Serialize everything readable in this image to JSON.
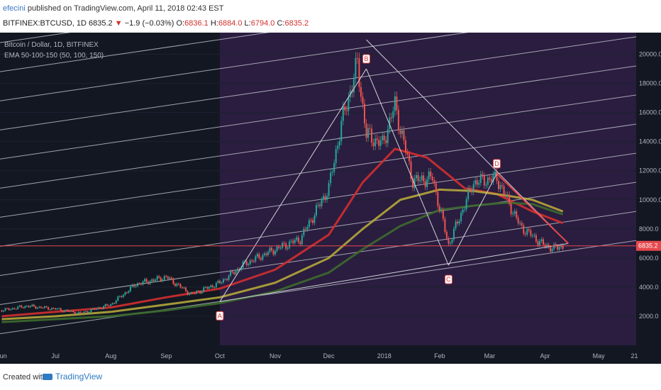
{
  "header": {
    "username": "efecini",
    "published_text": " published on TradingView.com, April 11, 2018 02:43 EST",
    "symbol": "BITFINEX:BTCUSD, 1D",
    "last_price": "6835.2",
    "change": "−1.9 (−0.03%)",
    "o_label": "O:",
    "o_value": "6836.1",
    "h_label": "H:",
    "h_value": "6884.0",
    "l_label": "L:",
    "l_value": "6794.0",
    "c_label": "C:",
    "c_value": "6835.2"
  },
  "legend": {
    "series_title": "Bitcoin / Dollar, 1D, BITFINEX",
    "indicator_title": "EMA 50-100-150 (50, 100, 150)"
  },
  "footer": {
    "created_with": "Created with",
    "brand": "TradingView"
  },
  "colors": {
    "background": "#131722",
    "highlight_zone": "#2a1d3f",
    "candle_up": "#26a69a",
    "candle_down": "#ef5350",
    "ema50": "#d32f2f",
    "ema100": "#b5a73a",
    "ema150": "#3d6b2e",
    "trendline": "#d0d3dc",
    "price_line": "#e5484d"
  },
  "chart_data": {
    "type": "line",
    "title": "Bitcoin / Dollar, 1D, BITFINEX",
    "x_ticks": [
      "Jun",
      "Jul",
      "Aug",
      "Sep",
      "Oct",
      "Nov",
      "Dec",
      "2018",
      "Feb",
      "Mar",
      "Apr",
      "May",
      "21"
    ],
    "y_ticks": [
      "2000.0",
      "4000.0",
      "6000.0",
      "8000.0",
      "10000.0",
      "12000.0",
      "14000.0",
      "16000.0",
      "18000.0",
      "20000.0"
    ],
    "ylim": [
      0,
      21000
    ],
    "last_price_label": "6835.2",
    "series": [
      {
        "name": "BTCUSD",
        "x": [
          "2017-06-01",
          "2017-06-15",
          "2017-07-01",
          "2017-07-15",
          "2017-08-01",
          "2017-08-15",
          "2017-09-01",
          "2017-09-15",
          "2017-10-01",
          "2017-10-15",
          "2017-11-01",
          "2017-11-15",
          "2017-12-01",
          "2017-12-08",
          "2017-12-17",
          "2017-12-22",
          "2017-12-31",
          "2018-01-07",
          "2018-01-17",
          "2018-01-28",
          "2018-02-06",
          "2018-02-20",
          "2018-03-05",
          "2018-03-18",
          "2018-03-31",
          "2018-04-06",
          "2018-04-11"
        ],
        "values": [
          2400,
          2700,
          2500,
          2200,
          2800,
          4200,
          4700,
          3500,
          4300,
          5600,
          6600,
          7300,
          10800,
          15200,
          19300,
          14500,
          13800,
          16500,
          11300,
          11500,
          6900,
          11200,
          11500,
          8200,
          6900,
          6650,
          6835
        ]
      },
      {
        "name": "EMA 50",
        "x": [
          "2017-06-01",
          "2017-07-01",
          "2017-08-01",
          "2017-09-01",
          "2017-10-01",
          "2017-11-01",
          "2017-12-01",
          "2017-12-20",
          "2018-01-07",
          "2018-01-25",
          "2018-02-15",
          "2018-03-05",
          "2018-03-25",
          "2018-04-11"
        ],
        "values": [
          2000,
          2300,
          2600,
          3300,
          3900,
          5200,
          7600,
          11200,
          13500,
          12900,
          10800,
          10400,
          9200,
          8400
        ]
      },
      {
        "name": "EMA 100",
        "x": [
          "2017-06-01",
          "2017-07-01",
          "2017-08-01",
          "2017-09-01",
          "2017-10-01",
          "2017-11-01",
          "2017-12-01",
          "2017-12-20",
          "2018-01-10",
          "2018-02-01",
          "2018-02-20",
          "2018-03-10",
          "2018-03-25",
          "2018-04-11"
        ],
        "values": [
          1800,
          2000,
          2300,
          2800,
          3300,
          4300,
          6000,
          8000,
          10000,
          10700,
          10600,
          10300,
          10000,
          9200
        ]
      },
      {
        "name": "EMA 150",
        "x": [
          "2017-06-01",
          "2017-07-01",
          "2017-08-01",
          "2017-09-01",
          "2017-10-01",
          "2017-11-01",
          "2017-12-01",
          "2017-12-20",
          "2018-01-10",
          "2018-02-01",
          "2018-02-20",
          "2018-03-10",
          "2018-03-25",
          "2018-04-11"
        ],
        "values": [
          1600,
          1800,
          2000,
          2400,
          2900,
          3700,
          5000,
          6600,
          8200,
          9300,
          9600,
          9800,
          9700,
          9000
        ]
      }
    ],
    "annotations": [
      {
        "label": "A",
        "x": "2017-10-01",
        "y": 3000
      },
      {
        "label": "B",
        "x": "2017-12-22",
        "y": 19000
      },
      {
        "label": "C",
        "x": "2018-02-06",
        "y": 5500
      },
      {
        "label": "D",
        "x": "2018-03-05",
        "y": 11800
      }
    ]
  }
}
